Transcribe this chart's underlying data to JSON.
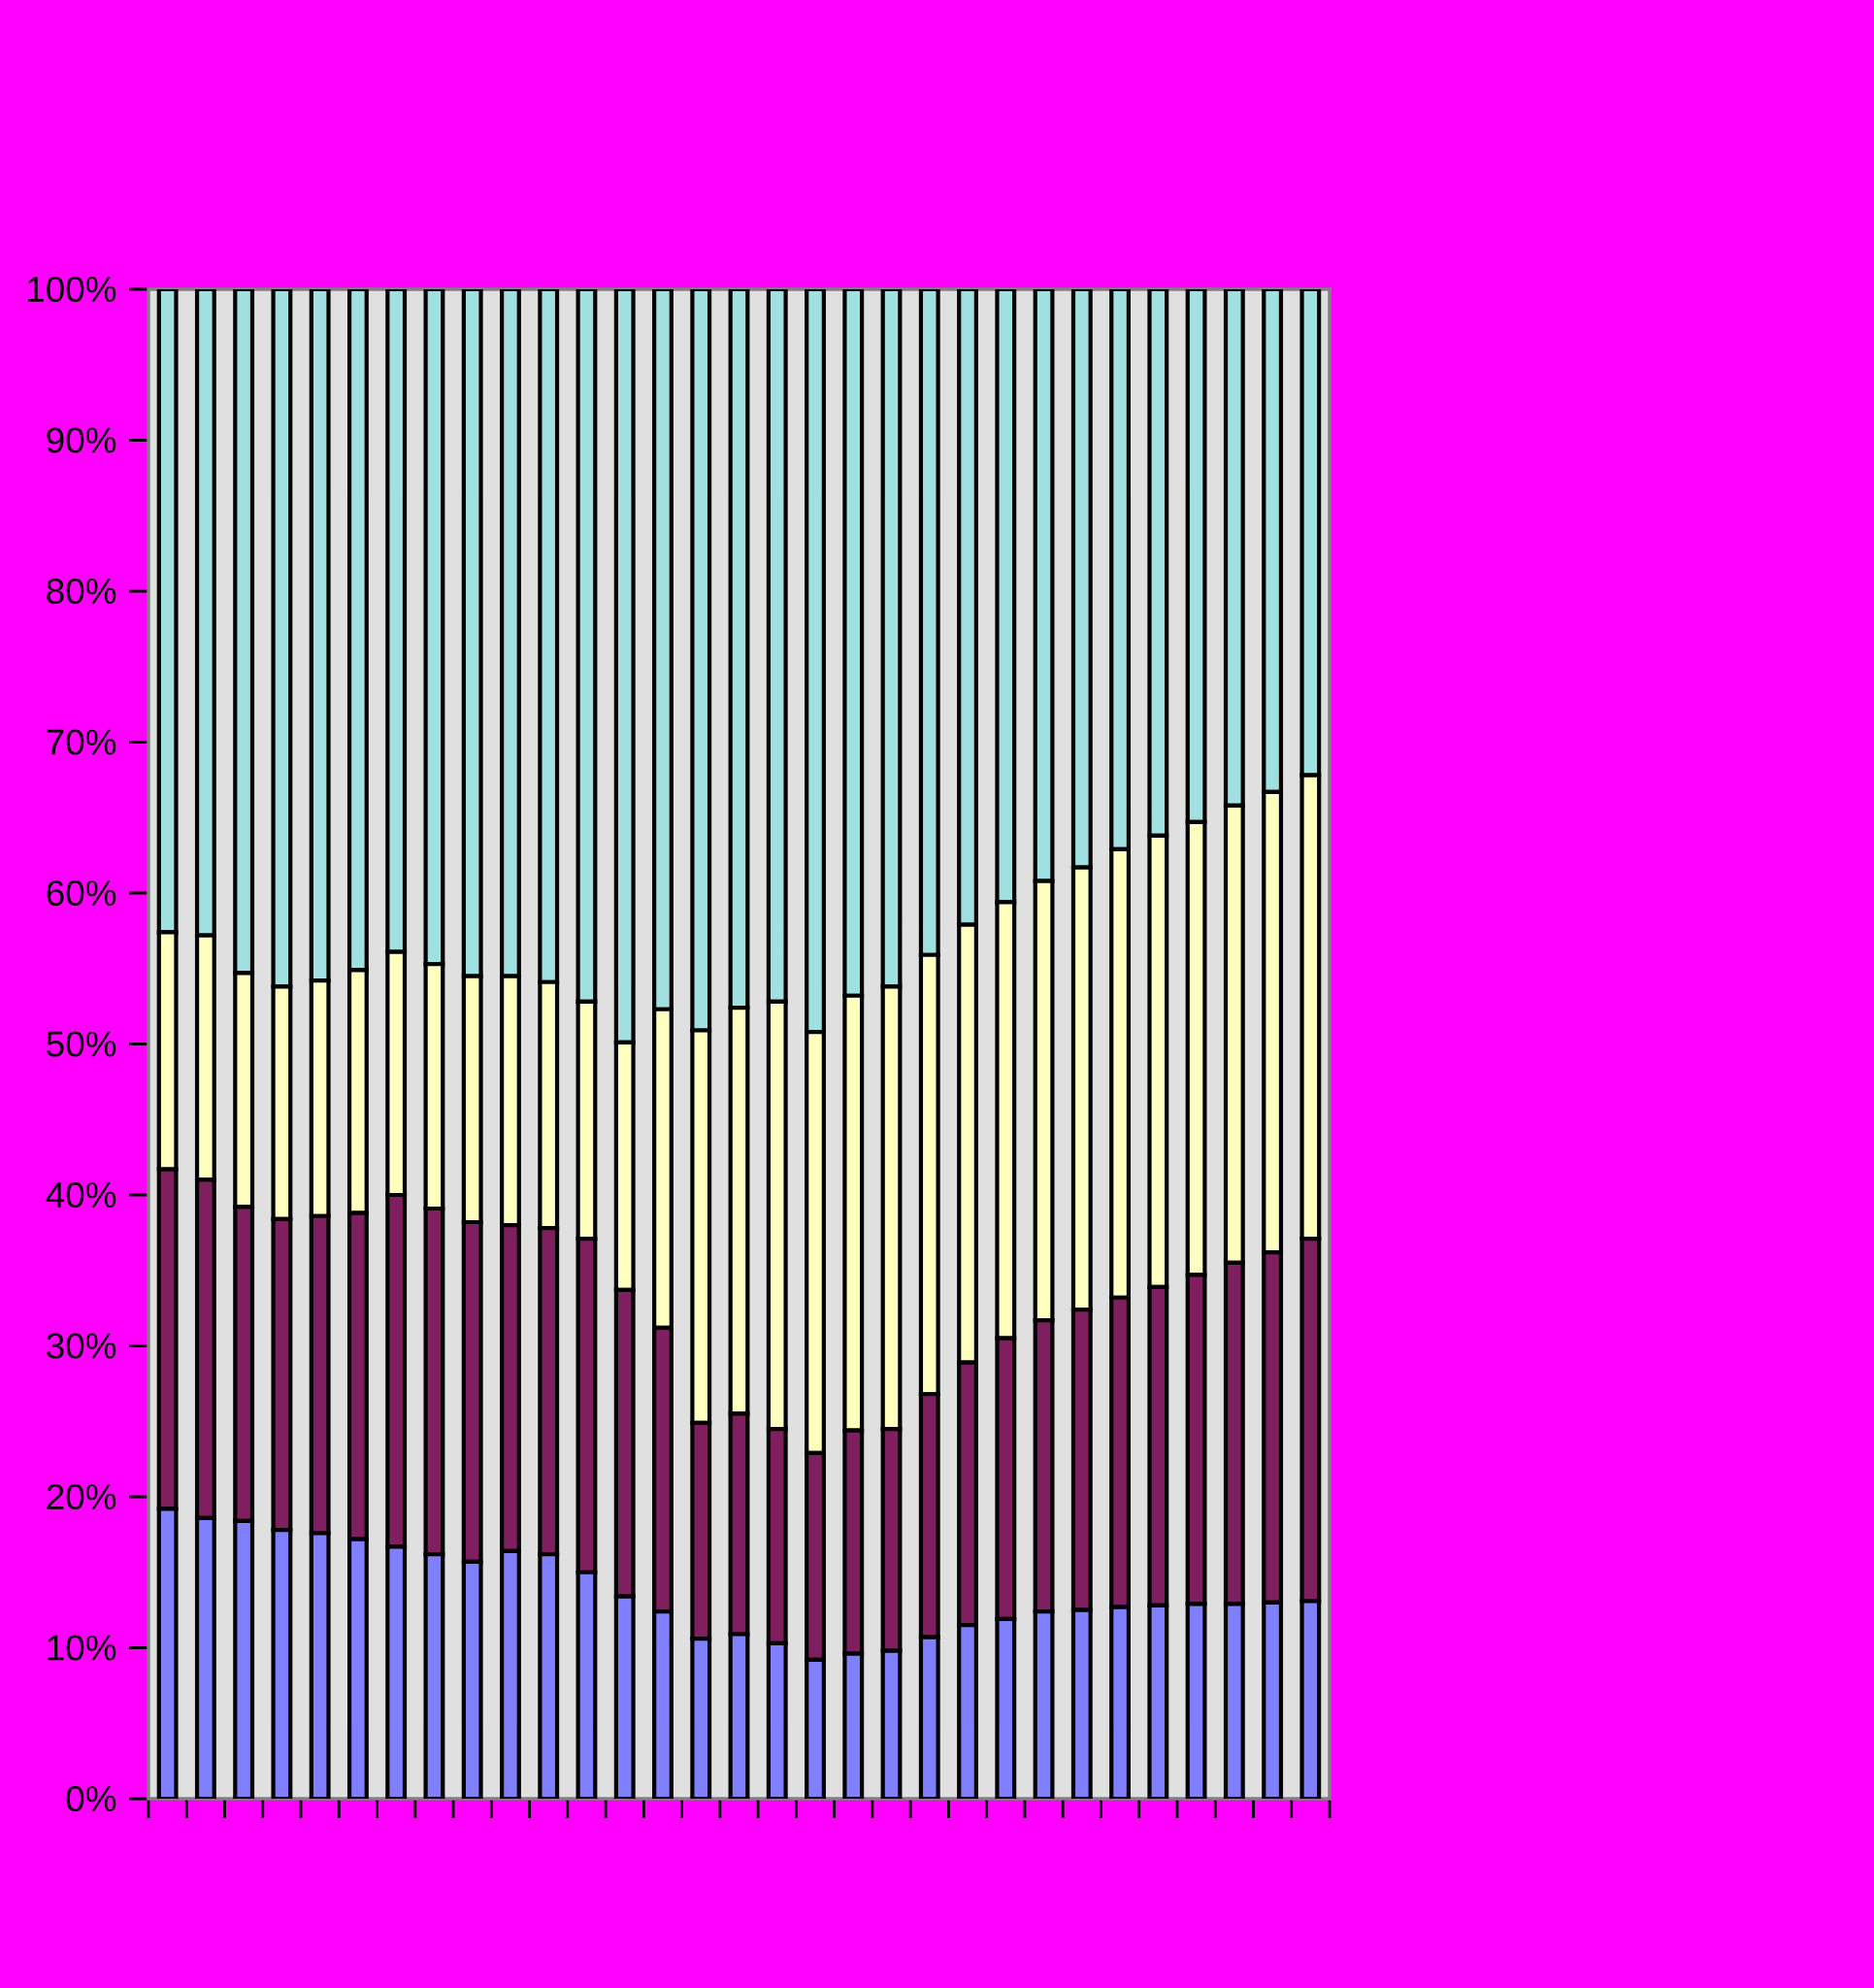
{
  "chart_data": {
    "type": "bar",
    "stacked": true,
    "tick_labels": "y",
    "categories": [
      null,
      null,
      null,
      null,
      null,
      null,
      null,
      null,
      null,
      null,
      null,
      null,
      null,
      null,
      null,
      null,
      null,
      null,
      null,
      null,
      null,
      null,
      null,
      null,
      null,
      null,
      null,
      null,
      null,
      null,
      null
    ],
    "ylim": [
      0,
      100
    ],
    "yticks": [
      {
        "value": 0,
        "label": "0%"
      },
      {
        "value": 10,
        "label": "10%"
      },
      {
        "value": 20,
        "label": "20%"
      },
      {
        "value": 30,
        "label": "30%"
      },
      {
        "value": 40,
        "label": "40%"
      },
      {
        "value": 50,
        "label": "50%"
      },
      {
        "value": 60,
        "label": "60%"
      },
      {
        "value": 70,
        "label": "70%"
      },
      {
        "value": 80,
        "label": "80%"
      },
      {
        "value": 90,
        "label": "90%"
      },
      {
        "value": 100,
        "label": "100%"
      }
    ],
    "series": [
      {
        "color": "#8080ff",
        "values": [
          19.2,
          18.6,
          18.4,
          17.8,
          17.6,
          17.2,
          16.7,
          16.2,
          15.7,
          16.4,
          16.2,
          15.0,
          13.4,
          12.4,
          10.6,
          10.9,
          10.3,
          9.2,
          9.6,
          9.8,
          10.7,
          11.5,
          11.9,
          12.4,
          12.5,
          12.7,
          12.8,
          12.9,
          12.9,
          13.0,
          13.1
        ]
      },
      {
        "color": "#801f60",
        "values": [
          22.5,
          22.4,
          20.8,
          20.6,
          21.0,
          21.6,
          23.3,
          22.9,
          22.5,
          21.6,
          21.6,
          22.1,
          20.3,
          18.8,
          14.3,
          14.6,
          14.2,
          13.7,
          14.8,
          14.7,
          16.1,
          17.4,
          18.6,
          19.3,
          19.9,
          20.5,
          21.1,
          21.8,
          22.6,
          23.2,
          24.0
        ]
      },
      {
        "color": "#ffffc0",
        "values": [
          15.7,
          16.2,
          15.5,
          15.4,
          15.6,
          16.1,
          16.1,
          16.2,
          16.3,
          16.5,
          16.3,
          15.7,
          16.4,
          21.1,
          26.0,
          26.9,
          28.3,
          27.9,
          28.8,
          29.3,
          29.1,
          29.0,
          28.9,
          29.1,
          29.3,
          29.7,
          29.9,
          30.0,
          30.3,
          30.5,
          30.7
        ]
      },
      {
        "color": "#a0e0e0",
        "values": [
          42.6,
          42.8,
          45.3,
          46.2,
          45.8,
          45.1,
          43.9,
          44.7,
          45.5,
          45.5,
          45.9,
          47.2,
          49.9,
          47.7,
          49.1,
          47.6,
          47.2,
          49.2,
          46.8,
          46.2,
          44.1,
          42.1,
          40.6,
          39.2,
          38.3,
          37.1,
          36.2,
          35.3,
          34.2,
          33.3,
          32.2
        ]
      }
    ]
  }
}
